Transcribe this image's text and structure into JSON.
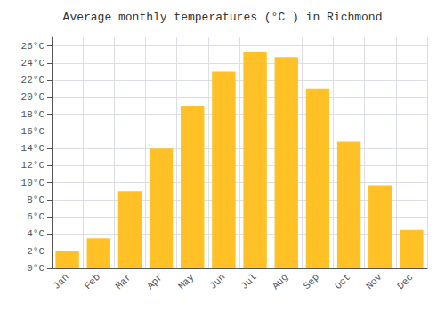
{
  "chart_data": {
    "type": "bar",
    "title": "Average monthly temperatures (°C ) in Richmond",
    "categories": [
      "Jan",
      "Feb",
      "Mar",
      "Apr",
      "May",
      "Jun",
      "Jul",
      "Aug",
      "Sep",
      "Oct",
      "Nov",
      "Dec"
    ],
    "values": [
      2.0,
      3.5,
      9.0,
      14.0,
      19.0,
      23.0,
      25.3,
      24.7,
      21.0,
      14.8,
      9.7,
      4.5
    ],
    "color": "#FFC125",
    "ylim": [
      0,
      27
    ],
    "yticks": [
      {
        "value": 0,
        "label": "0°C"
      },
      {
        "value": 2,
        "label": "2°C"
      },
      {
        "value": 4,
        "label": "4°C"
      },
      {
        "value": 6,
        "label": "6°C"
      },
      {
        "value": 8,
        "label": "8°C"
      },
      {
        "value": 10,
        "label": "10°C"
      },
      {
        "value": 12,
        "label": "12°C"
      },
      {
        "value": 14,
        "label": "14°C"
      },
      {
        "value": 16,
        "label": "16°C"
      },
      {
        "value": 18,
        "label": "18°C"
      },
      {
        "value": 20,
        "label": "20°C"
      },
      {
        "value": 22,
        "label": "22°C"
      },
      {
        "value": 24,
        "label": "24°C"
      },
      {
        "value": 26,
        "label": "26°C"
      }
    ],
    "grid": true
  }
}
